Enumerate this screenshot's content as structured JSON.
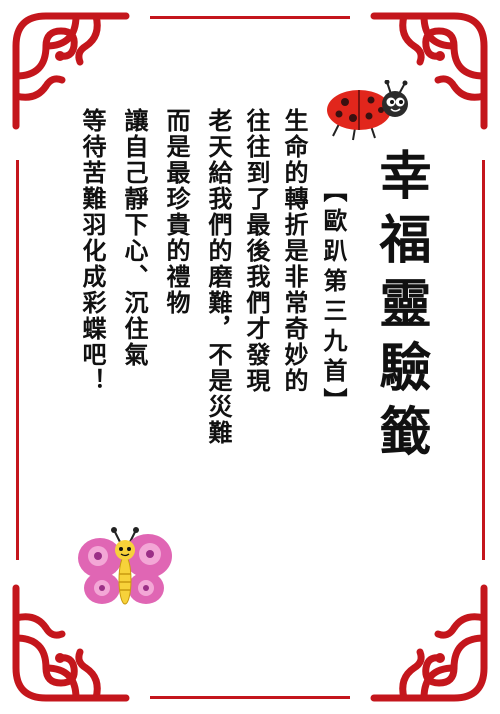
{
  "title": "幸福靈驗籤",
  "subtitle": "【歐趴第三九首】",
  "poem_lines": [
    "生命的轉折是非常奇妙的",
    "往往到了最後我們才發現",
    "老天給我們的磨難，不是災難",
    "而是最珍貴的禮物",
    "讓自己靜下心、沉住氣",
    "等待苦難羽化成彩蝶吧！"
  ],
  "colors": {
    "frame_red": "#c4161c",
    "ladybug_red": "#e1261c",
    "butterfly_pink": "#e066b4",
    "butterfly_body": "#f7d23a"
  },
  "icons": [
    "ladybug-icon",
    "butterfly-icon",
    "corner-flourish-icon"
  ]
}
